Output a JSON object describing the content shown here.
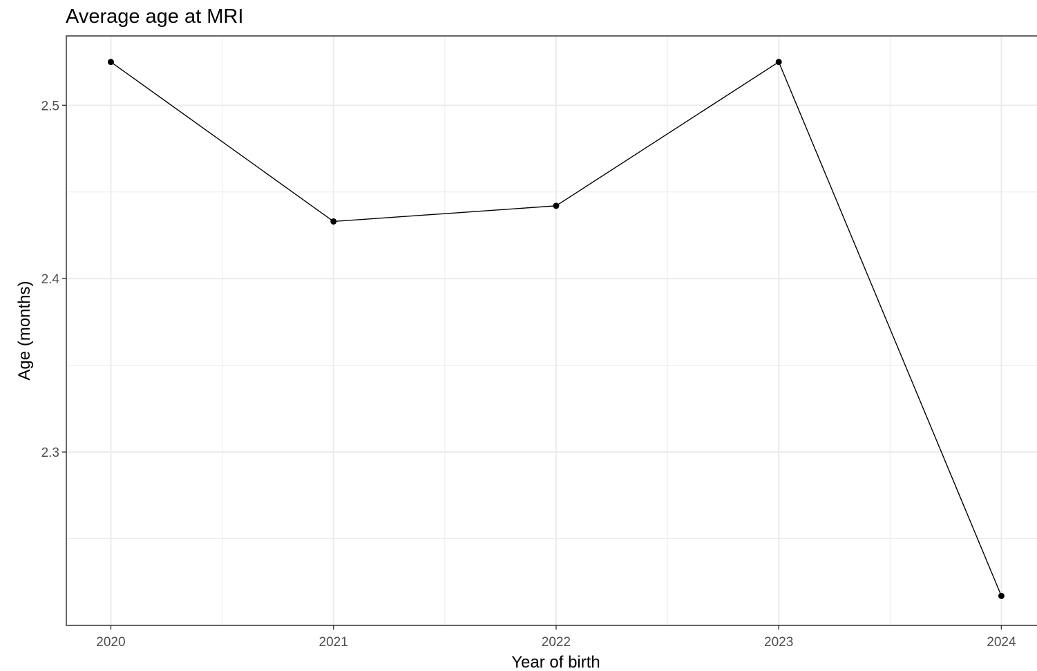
{
  "chart_data": {
    "type": "line",
    "title": "Average age at MRI",
    "xlabel": "Year of birth",
    "ylabel": "Age (months)",
    "x": [
      2020,
      2021,
      2022,
      2023,
      2024
    ],
    "series": [
      {
        "values": [
          2.525,
          2.433,
          2.442,
          2.525,
          2.217
        ]
      }
    ],
    "xlim": [
      2019.8,
      2024.16
    ],
    "ylim": [
      2.2,
      2.54
    ],
    "x_ticks": [
      "2020",
      "2021",
      "2022",
      "2023",
      "2024"
    ],
    "y_ticks": [
      "2.3",
      "2.4",
      "2.5"
    ],
    "y_tick_values": [
      2.3,
      2.4,
      2.5
    ],
    "y_minor_values": [
      2.25,
      2.35,
      2.45
    ],
    "x_minor_values": [
      2020.5,
      2021.5,
      2022.5,
      2023.5
    ],
    "grid": true,
    "legend": "none",
    "colors": {
      "line": "#000000",
      "point": "#000000",
      "grid": "#ebebeb",
      "panel_border": "#333333",
      "tick_text": "#4d4d4d"
    }
  }
}
